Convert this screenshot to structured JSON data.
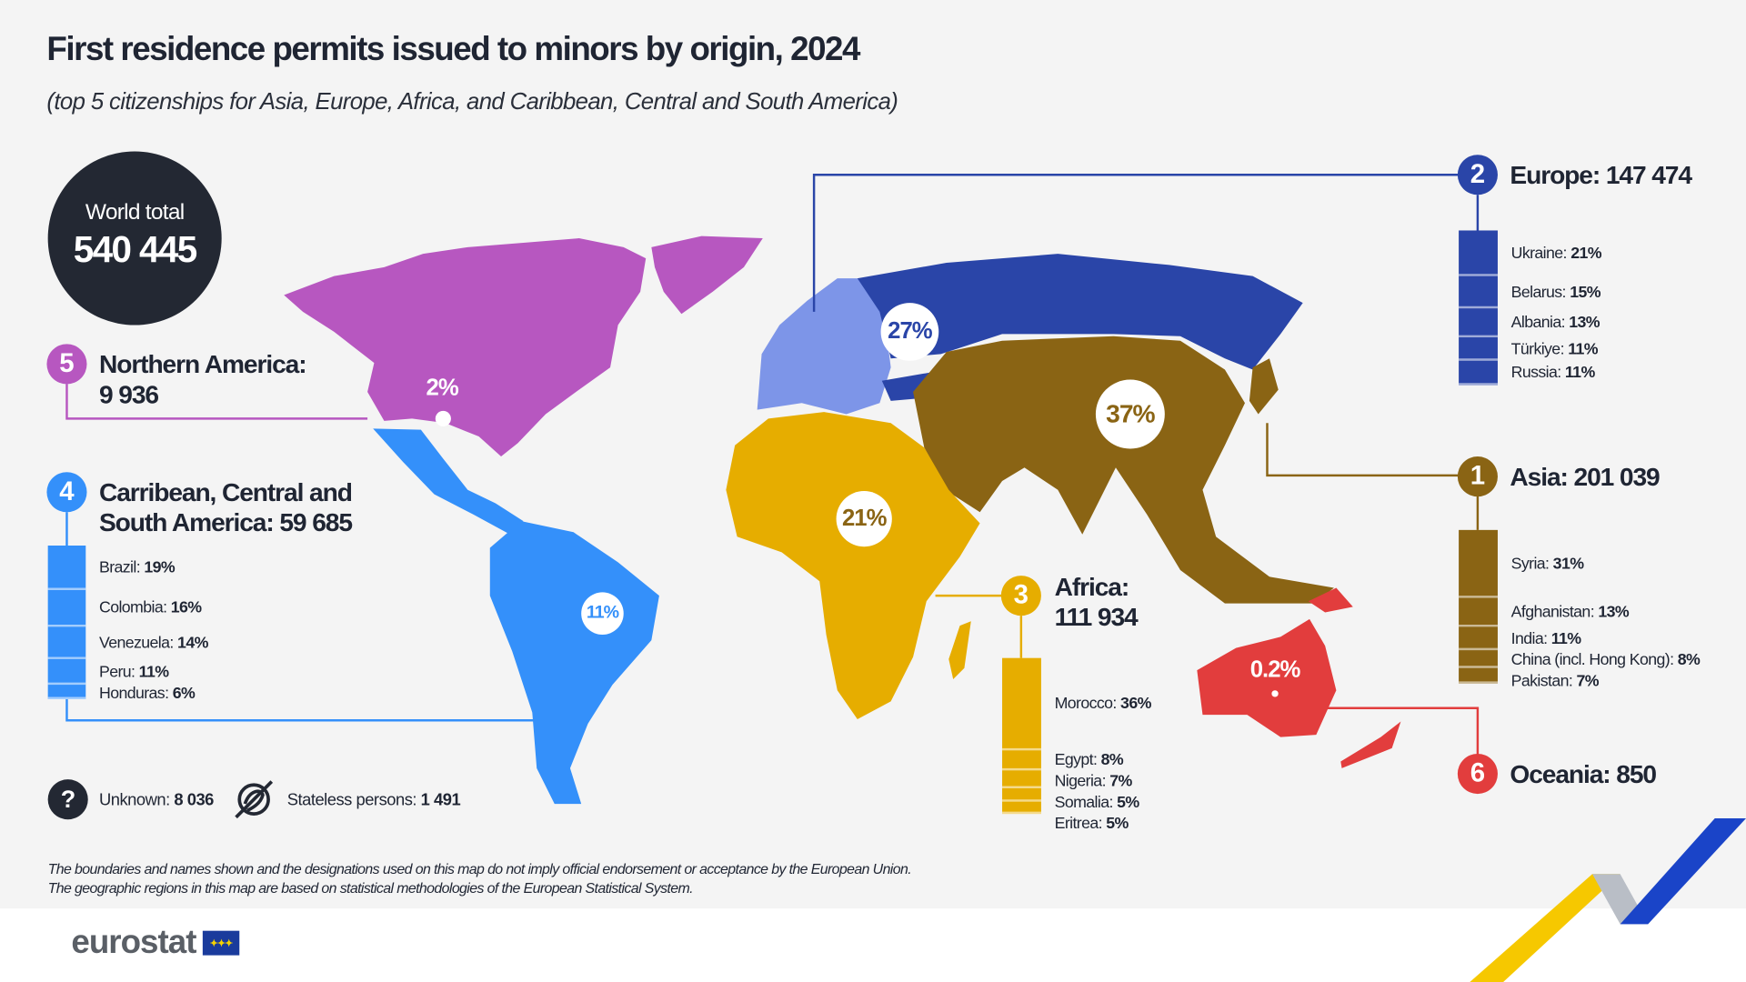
{
  "title": "First residence permits issued to minors by origin, 2024",
  "subtitle": "(top 5 citizenships for Asia, Europe, Africa, and Caribbean, Central and South America)",
  "world_total": {
    "label": "World total",
    "value": "540 445"
  },
  "regions": [
    {
      "rank": "1",
      "name": "Asia",
      "total": "201 039",
      "share": "37%",
      "color": "#8a6414",
      "countries": [
        {
          "name": "Syria",
          "pct": "31%"
        },
        {
          "name": "Afghanistan",
          "pct": "13%"
        },
        {
          "name": "India",
          "pct": "11%"
        },
        {
          "name": "China (incl. Hong Kong)",
          "pct": "8%"
        },
        {
          "name": "Pakistan",
          "pct": "7%"
        }
      ]
    },
    {
      "rank": "2",
      "name": "Europe",
      "total": "147 474",
      "share": "27%",
      "color": "#2a45a8",
      "countries": [
        {
          "name": "Ukraine",
          "pct": "21%"
        },
        {
          "name": "Belarus",
          "pct": "15%"
        },
        {
          "name": "Albania",
          "pct": "13%"
        },
        {
          "name": "Türkiye",
          "pct": "11%"
        },
        {
          "name": "Russia",
          "pct": "11%"
        }
      ]
    },
    {
      "rank": "3",
      "name": "Africa",
      "total": "111 934",
      "share": "21%",
      "color": "#e6ad00",
      "countries": [
        {
          "name": "Morocco",
          "pct": "36%"
        },
        {
          "name": "Egypt",
          "pct": "8%"
        },
        {
          "name": "Nigeria",
          "pct": "7%"
        },
        {
          "name": "Somalia",
          "pct": "5%"
        },
        {
          "name": "Eritrea",
          "pct": "5%"
        }
      ]
    },
    {
      "rank": "4",
      "name": "Carribean, Central and South America",
      "total": "59 685",
      "share": "11%",
      "color": "#3490fa",
      "countries": [
        {
          "name": "Brazil",
          "pct": "19%"
        },
        {
          "name": "Colombia",
          "pct": "16%"
        },
        {
          "name": "Venezuela",
          "pct": "14%"
        },
        {
          "name": "Peru",
          "pct": "11%"
        },
        {
          "name": "Honduras",
          "pct": "6%"
        }
      ]
    },
    {
      "rank": "5",
      "name": "Northern America",
      "total": "9 936",
      "share": "2%",
      "color": "#b757c0",
      "countries": []
    },
    {
      "rank": "6",
      "name": "Oceania",
      "total": "850",
      "share": "0.2%",
      "color": "#e23d3d",
      "countries": []
    }
  ],
  "europe_light_color": "#7d95e8",
  "unknown": {
    "label": "Unknown:",
    "value": "8 036",
    "icon": "question-icon"
  },
  "stateless": {
    "label": "Stateless persons:",
    "value": "1 491",
    "icon": "stateless-icon"
  },
  "footnotes": [
    "The boundaries and names shown and the designations used on this map do not imply official endorsement or acceptance by the European Union.",
    "The geographic regions in this map are based on statistical methodologies of the European Statistical System."
  ],
  "logo": "eurostat"
}
